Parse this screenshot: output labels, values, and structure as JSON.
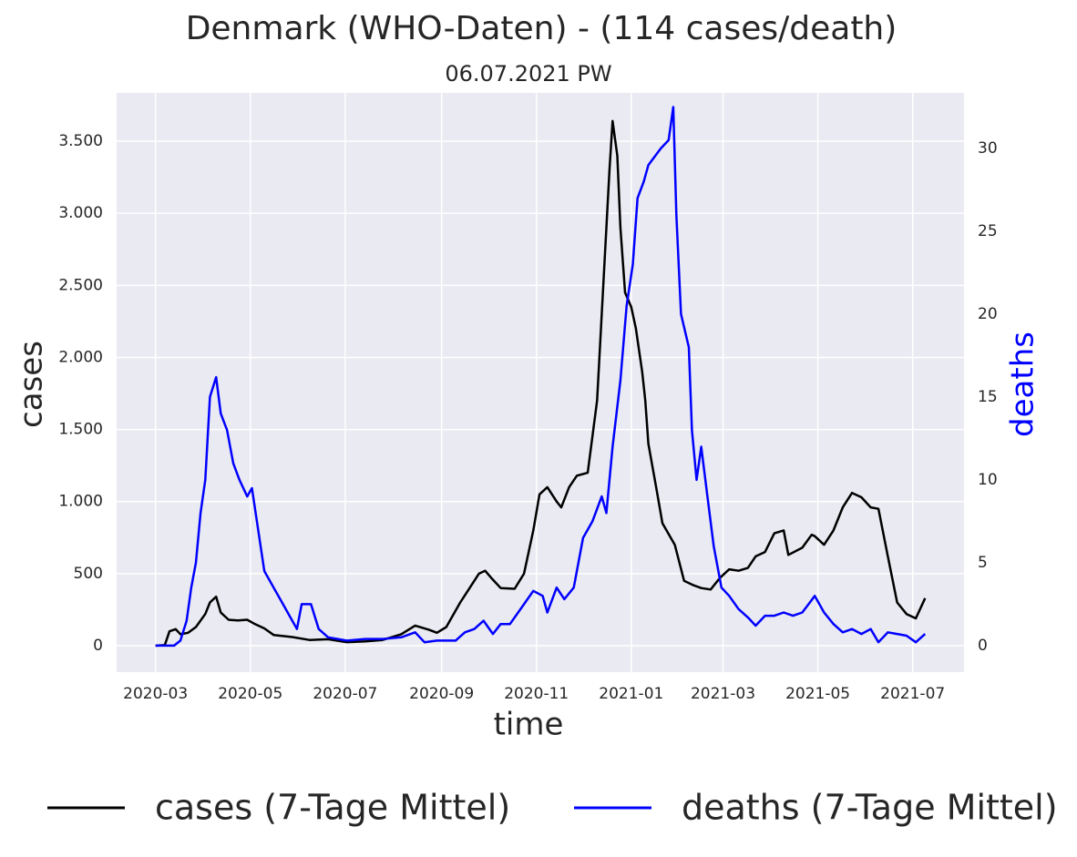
{
  "chart_data": {
    "type": "line",
    "title": "Denmark (WHO-Daten) - (114 cases/death)",
    "subtitle": "06.07.2021 PW",
    "x_label": "time",
    "y_label": "cases",
    "y2_label": "deaths",
    "y2_label_color": "#0000ff",
    "grid": true,
    "legend": "bottom",
    "xlim": [
      -25,
      520
    ],
    "xticks": [
      {
        "value": 0,
        "label": "2020-03"
      },
      {
        "value": 61,
        "label": "2020-05"
      },
      {
        "value": 122,
        "label": "2020-07"
      },
      {
        "value": 184,
        "label": "2020-09"
      },
      {
        "value": 245,
        "label": "2020-11"
      },
      {
        "value": 306,
        "label": "2021-01"
      },
      {
        "value": 365,
        "label": "2021-03"
      },
      {
        "value": 426,
        "label": "2021-05"
      },
      {
        "value": 487,
        "label": "2021-07"
      }
    ],
    "ylim": [
      -183,
      3835
    ],
    "yticks": [
      0,
      500,
      {
        "value": 1000,
        "label": "1.000"
      },
      {
        "value": 1500,
        "label": "1.500"
      },
      {
        "value": 2000,
        "label": "2.000"
      },
      {
        "value": 2500,
        "label": "2.500"
      },
      {
        "value": 3000,
        "label": "3.000"
      },
      {
        "value": 3500,
        "label": "3.500"
      }
    ],
    "y2lim": [
      -1.6,
      33.35
    ],
    "y2ticks": [
      0,
      5,
      10,
      15,
      20,
      25,
      30
    ],
    "series": [
      {
        "name": "cases (7-Tage Mittel)",
        "color": "#000000",
        "x": [
          0,
          6,
          9,
          13,
          16,
          21,
          26,
          32,
          35,
          39,
          42,
          47,
          53,
          59,
          64,
          70,
          76,
          88,
          99,
          111,
          123,
          135,
          146,
          158,
          167,
          176,
          181,
          187,
          196,
          202,
          208,
          212,
          216,
          222,
          231,
          237,
          243,
          247,
          252,
          258,
          261,
          266,
          271,
          278,
          284,
          288,
          292,
          294,
          297,
          299,
          302,
          306,
          309,
          313,
          315,
          317,
          322,
          326,
          334,
          340,
          346,
          351,
          357,
          363,
          369,
          375,
          381,
          386,
          392,
          398,
          404,
          407,
          416,
          422,
          424,
          430,
          436,
          442,
          448,
          454,
          460,
          465,
          471,
          477,
          483,
          489,
          495
        ],
        "values": [
          0,
          5,
          100,
          115,
          80,
          90,
          130,
          220,
          300,
          340,
          230,
          180,
          175,
          180,
          150,
          120,
          75,
          60,
          40,
          45,
          25,
          30,
          40,
          80,
          140,
          110,
          90,
          130,
          300,
          400,
          500,
          520,
          470,
          400,
          395,
          500,
          800,
          1050,
          1100,
          1000,
          960,
          1100,
          1180,
          1200,
          1700,
          2500,
          3300,
          3640,
          3400,
          2900,
          2450,
          2350,
          2200,
          1900,
          1700,
          1400,
          1100,
          850,
          700,
          450,
          420,
          400,
          390,
          470,
          530,
          520,
          540,
          620,
          650,
          780,
          800,
          630,
          680,
          770,
          760,
          700,
          800,
          960,
          1060,
          1030,
          960,
          950,
          620,
          300,
          220,
          190,
          330
        ]
      },
      {
        "name": "deaths (7-Tage Mittel)",
        "color": "#0000ff",
        "axis": "y2",
        "x": [
          0,
          12,
          16,
          20,
          23,
          26,
          29,
          32,
          35,
          39,
          42,
          46,
          50,
          54,
          59,
          62,
          66,
          70,
          76,
          82,
          88,
          91,
          94,
          100,
          105,
          111,
          123,
          135,
          146,
          158,
          167,
          173,
          181,
          193,
          199,
          205,
          211,
          217,
          222,
          228,
          237,
          243,
          249,
          252,
          258,
          263,
          269,
          275,
          281,
          287,
          290,
          294,
          299,
          303,
          307,
          310,
          314,
          317,
          321,
          325,
          330,
          333,
          335,
          338,
          343,
          345,
          348,
          351,
          355,
          359,
          364,
          369,
          375,
          381,
          386,
          392,
          398,
          404,
          410,
          416,
          420,
          424,
          430,
          436,
          442,
          448,
          454,
          460,
          465,
          471,
          477,
          483,
          489,
          495
        ],
        "values": [
          0,
          0,
          0.3,
          1.5,
          3.5,
          5,
          8,
          10,
          15,
          16.2,
          14,
          13,
          11,
          10,
          9,
          9.5,
          7,
          4.5,
          3.5,
          2.5,
          1.5,
          1,
          2.5,
          2.5,
          1,
          0.5,
          0.3,
          0.4,
          0.4,
          0.5,
          0.8,
          0.2,
          0.3,
          0.3,
          0.8,
          1,
          1.5,
          0.7,
          1.3,
          1.3,
          2.5,
          3.3,
          3,
          2,
          3.5,
          2.8,
          3.5,
          6.5,
          7.5,
          9,
          8,
          12,
          16,
          20.5,
          23,
          27,
          28,
          29,
          29.5,
          30,
          30.5,
          32.5,
          26,
          20,
          18,
          13,
          10,
          12,
          9,
          6,
          3.5,
          3,
          2.2,
          1.7,
          1.2,
          1.8,
          1.8,
          2,
          1.8,
          2,
          2.5,
          3,
          2,
          1.3,
          0.8,
          1,
          0.7,
          1,
          0.2,
          0.8,
          0.7,
          0.6,
          0.2,
          0.7
        ]
      }
    ]
  }
}
